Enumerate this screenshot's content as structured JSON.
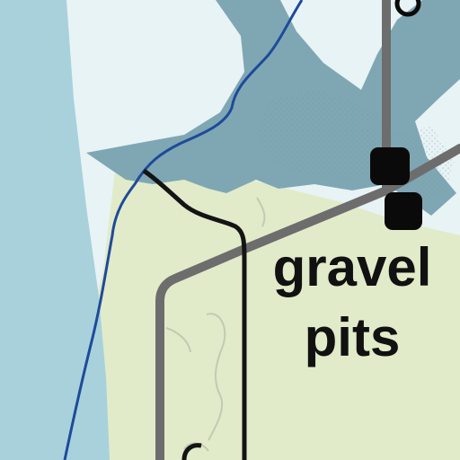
{
  "map": {
    "label": {
      "line1": "gravel",
      "line2": "pits"
    },
    "colors": {
      "background": "#e8f3f6",
      "land": "#e1ebc9",
      "water_channel": "#a8d1dc",
      "water_body": "#7fa7b3",
      "water_stipple": "#6e97a4",
      "stream": "#1f4a9a",
      "road": "#6d6d6d",
      "trail": "#141414",
      "contour": "#c2cab3",
      "stop_marker": "#0a0a0a",
      "label_text": "#111111"
    },
    "features": [
      "land-area",
      "water-channel",
      "gravel-pit-water",
      "stream",
      "road",
      "trail",
      "contour-lines",
      "stop-markers"
    ]
  }
}
